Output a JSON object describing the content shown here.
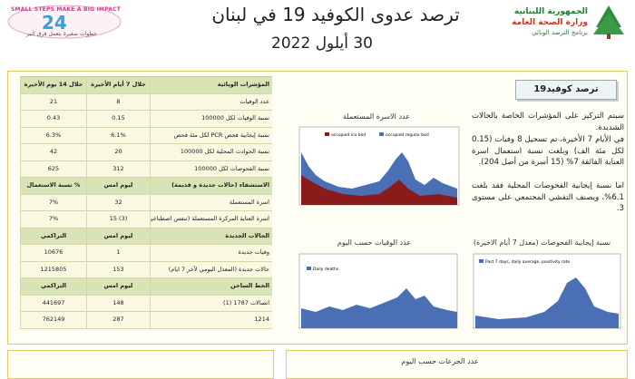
{
  "header": {
    "logo_left": {
      "slogan": "SMALL STEPS MAKE A BIG IMPACT",
      "number": "24",
      "tagline": "خطوات صغيرة بتعمل فرق كبير"
    },
    "title": "ترصد عدوى الكوفيد 19 في لبنان",
    "date": "30 أيلول 2022",
    "ministry": {
      "republic": "الجمهورية اللبنانية",
      "ministry": "وزارة الصحة العامة",
      "program": "برنامج الترصد الوبائي"
    }
  },
  "table": {
    "sections": [
      {
        "header": [
          "المؤشرات الوبائية",
          "خلال 7 أيام الأخيرة",
          "خلال 14 يوم الأخيرة"
        ],
        "rows": [
          [
            "عدد الوفيات",
            "8",
            "21"
          ],
          [
            "نسبة الوفيات لكل 100000",
            "0.15",
            "0.43"
          ],
          [
            "نسبة إيجابية فحص PCR لكل مئة فحص",
            "6.1%",
            "6.3%"
          ],
          [
            "نسبة الحوادث المحلية لكل 100000",
            "20",
            "42"
          ],
          [
            "نسبة الفحوصات لكل 100000",
            "312",
            "625"
          ]
        ]
      },
      {
        "header": [
          "الاستشفاء (حالات جديدة و قديمة)",
          "ليوم امس",
          "% نسبة الاستعمال"
        ],
        "rows": [
          [
            "اسرة المستعملة",
            "32",
            "7%"
          ],
          [
            "اسرة العناية المركزة المستعملة (تنفس اصطناعي)",
            "(3) 15",
            "7%"
          ]
        ]
      },
      {
        "header": [
          "الحالات الجديدة",
          "ليوم امس",
          "التراكمي"
        ],
        "rows": [
          [
            "وفيات جديدة",
            "1",
            "10676"
          ],
          [
            "حالات جديدة (المعدل اليومي لآخر 7 ايام)",
            "153",
            "1215805"
          ]
        ]
      },
      {
        "header": [
          "الخط الساخن",
          "ليوم امس",
          "التراكمي"
        ],
        "rows": [
          [
            "اتصالات 1787 (1)",
            "148",
            "441697"
          ],
          [
            "1214",
            "287",
            "762149"
          ]
        ]
      }
    ]
  },
  "summary": {
    "title": "ترصد كوفيد19",
    "paragraphs": [
      "سيتم التركيز على المؤشرات الخاصة بالحالات الشديدة.",
      "في الأيام 7 الأخيرة، تم تسجيل 8 وفيات (0.15 لكل مئة الف) وبلغت نسبة استعمال اسرة العناية الفائقة 7% (15 أسرة من أصل 204).",
      "اما نسبة إيجابية الفحوصات المحلية فقد بلغت 6.1%، ويصنف التفشي المجتمعي على مستوى 3."
    ]
  },
  "charts": [
    {
      "title": "عدد الاسرة المستعملة",
      "legend": [
        "occupied icu bed",
        "occupied regular bed"
      ]
    },
    {
      "title": "عدد الوفيات حسب اليوم",
      "legend": [
        "Daily deaths"
      ]
    },
    {
      "title": "نسبة إيجابية الفحوصات (معدل 7 أيام الاخيرة)",
      "legend": [
        "Past 7 days, daily average, positivity rate"
      ]
    }
  ],
  "bottom": {
    "chart_title": "عدد الجرعات حسب اليوم"
  }
}
